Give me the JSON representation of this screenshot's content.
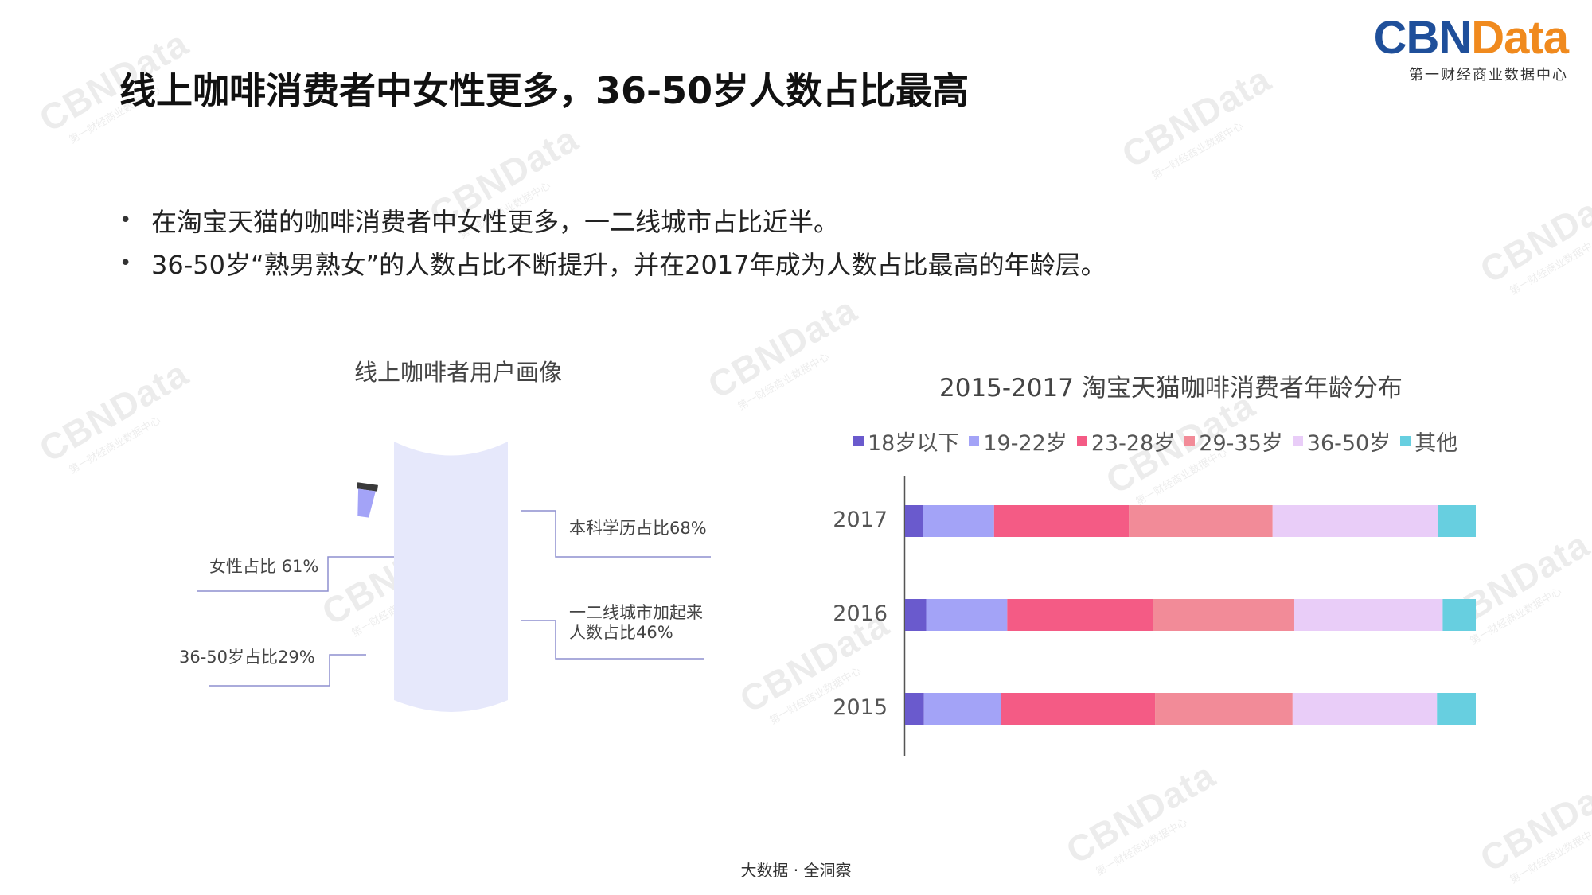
{
  "title": "线上咖啡消费者中女性更多，36-50岁人数占比最高",
  "logo": {
    "brand_part1": "CBN",
    "brand_part2": "Data",
    "subtitle": "第一财经商业数据中心"
  },
  "watermark": {
    "text": "CBNData",
    "subtext": "第一财经商业数据中心"
  },
  "bullets": [
    "在淘宝天猫的咖啡消费者中女性更多，一二线城市占比近半。",
    "36-50岁“熟男熟女”的人数占比不断提升，并在2017年成为人数占比最高的年龄层。"
  ],
  "portrait": {
    "title": "线上咖啡者用户画像",
    "female": "女性占比 61%",
    "age": "36-50岁占比29%",
    "bachelor": "本科学历占比68%",
    "city_line1": "一二线城市加起来",
    "city_line2": "人数占比46%"
  },
  "footer": "大数据 · 全洞察",
  "chart_data": {
    "type": "bar",
    "orientation": "horizontal",
    "stacked": true,
    "normalized": true,
    "title": "2015-2017 淘宝天猫咖啡消费者年龄分布",
    "categories": [
      "2017",
      "2016",
      "2015"
    ],
    "series": [
      {
        "name": "18岁以下",
        "color": "#6a5acd",
        "values": [
          3.2,
          3.7,
          3.3
        ]
      },
      {
        "name": "19-22岁",
        "color": "#a3a3f7",
        "values": [
          12.4,
          14.2,
          13.5
        ]
      },
      {
        "name": "23-28岁",
        "color": "#f45b85",
        "values": [
          23.6,
          25.6,
          27.0
        ]
      },
      {
        "name": "29-35岁",
        "color": "#f28b98",
        "values": [
          25.2,
          24.7,
          24.1
        ]
      },
      {
        "name": "36-50岁",
        "color": "#e9cdf8",
        "values": [
          29.0,
          26.0,
          25.3
        ]
      },
      {
        "name": "其他",
        "color": "#67cfe0",
        "values": [
          6.6,
          5.8,
          6.8
        ]
      }
    ],
    "legend_position": "top",
    "grid": false
  }
}
